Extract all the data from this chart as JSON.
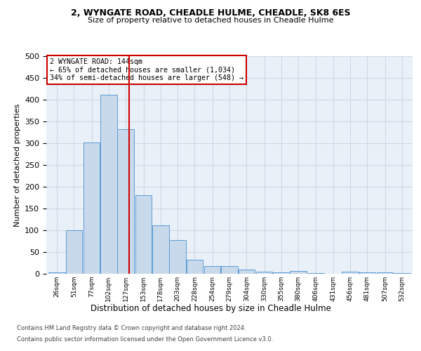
{
  "title_line1": "2, WYNGATE ROAD, CHEADLE HULME, CHEADLE, SK8 6ES",
  "title_line2": "Size of property relative to detached houses in Cheadle Hulme",
  "xlabel": "Distribution of detached houses by size in Cheadle Hulme",
  "ylabel": "Number of detached properties",
  "bar_color": "#c9d9ec",
  "bar_edge_color": "#5b9bd5",
  "grid_color": "#d0d8e4",
  "background_color": "#eaf0f8",
  "annotation_box_color": "#cc0000",
  "vline_color": "#cc0000",
  "vline_x": 144,
  "categories": [
    "26sqm",
    "51sqm",
    "77sqm",
    "102sqm",
    "127sqm",
    "153sqm",
    "178sqm",
    "203sqm",
    "228sqm",
    "254sqm",
    "279sqm",
    "304sqm",
    "330sqm",
    "355sqm",
    "380sqm",
    "406sqm",
    "431sqm",
    "456sqm",
    "481sqm",
    "507sqm",
    "532sqm"
  ],
  "bin_edges": [
    26,
    51,
    77,
    102,
    127,
    153,
    178,
    203,
    228,
    254,
    279,
    304,
    330,
    355,
    380,
    406,
    431,
    456,
    481,
    507,
    532
  ],
  "bin_width": 25,
  "bar_heights": [
    4,
    100,
    302,
    412,
    333,
    180,
    112,
    77,
    32,
    18,
    18,
    9,
    5,
    3,
    6,
    1,
    0,
    5,
    3,
    3,
    2
  ],
  "ylim": [
    0,
    500
  ],
  "yticks": [
    0,
    50,
    100,
    150,
    200,
    250,
    300,
    350,
    400,
    450,
    500
  ],
  "annotation_text": "2 WYNGATE ROAD: 144sqm\n← 65% of detached houses are smaller (1,034)\n34% of semi-detached houses are larger (548) →",
  "footnote1": "Contains HM Land Registry data © Crown copyright and database right 2024.",
  "footnote2": "Contains public sector information licensed under the Open Government Licence v3.0."
}
